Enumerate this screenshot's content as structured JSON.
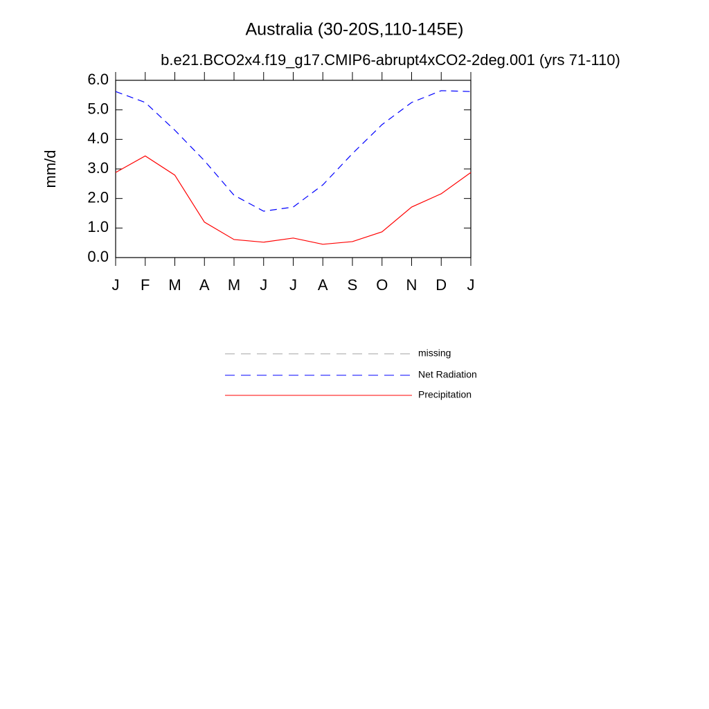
{
  "chart_data": {
    "type": "line",
    "title": "Australia (30-20S,110-145E)",
    "subtitle": "b.e21.BCO2x4.f19_g17.CMIP6-abrupt4xCO2-2deg.001 (yrs 71-110)",
    "y_label": "mm/d",
    "categories": [
      "J",
      "F",
      "M",
      "A",
      "M",
      "J",
      "J",
      "A",
      "S",
      "O",
      "N",
      "D",
      "J"
    ],
    "series": [
      {
        "name": "missing",
        "color": "#a0a0a0",
        "dashed": true,
        "values": [
          null,
          null,
          null,
          null,
          null,
          null,
          null,
          null,
          null,
          null,
          null,
          null,
          null
        ]
      },
      {
        "name": "Net Radiation",
        "color": "#0000ff",
        "dashed": true,
        "values": [
          5.62,
          5.25,
          4.31,
          3.28,
          2.11,
          1.57,
          1.71,
          2.46,
          3.52,
          4.5,
          5.25,
          5.65,
          5.62
        ]
      },
      {
        "name": "Precipitation",
        "color": "#ff0000",
        "dashed": false,
        "values": [
          2.88,
          3.44,
          2.79,
          1.2,
          0.61,
          0.52,
          0.66,
          0.45,
          0.54,
          0.87,
          1.71,
          2.16,
          2.88
        ]
      }
    ],
    "ylim": [
      0,
      6
    ],
    "yticks": [
      {
        "value": 0,
        "label": "0.0"
      },
      {
        "value": 1,
        "label": "1.0"
      },
      {
        "value": 2,
        "label": "2.0"
      },
      {
        "value": 3,
        "label": "3.0"
      },
      {
        "value": 4,
        "label": "4.0"
      },
      {
        "value": 5,
        "label": "5.0"
      },
      {
        "value": 6,
        "label": "6.0"
      }
    ],
    "grid": false
  }
}
